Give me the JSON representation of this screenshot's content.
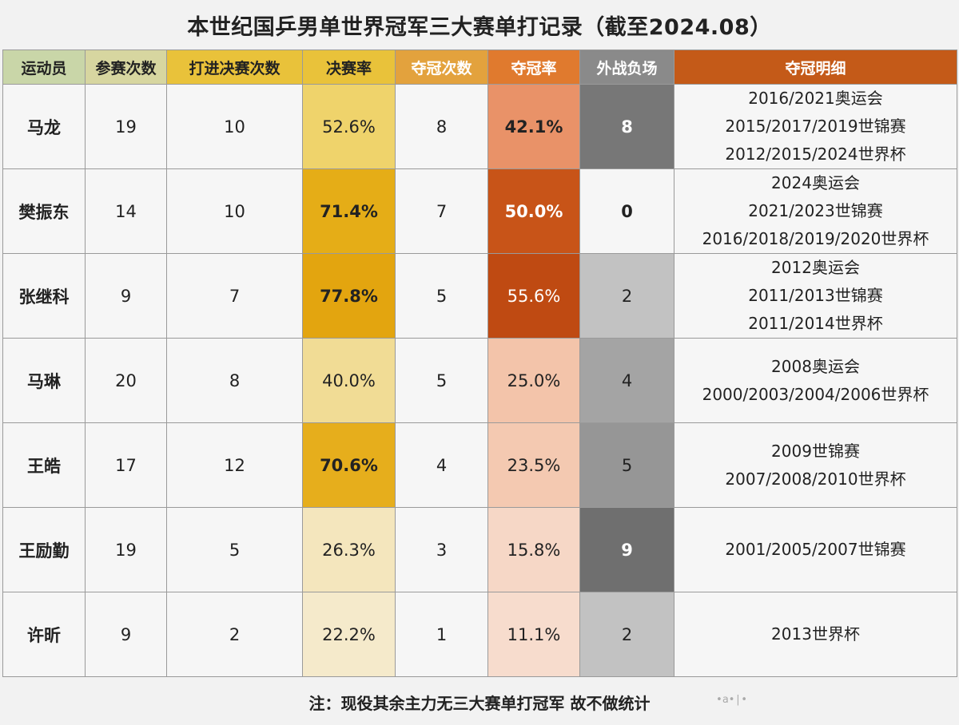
{
  "title": "本世纪国乒男单世界冠军三大赛单打记录（截至2024.08）",
  "note": "注：现役其余主力无三大赛单打冠军 故不做统计",
  "colors": {
    "header_name": "#c9d6a8",
    "header_entries": "#d7d6a0",
    "header_finals": "#e9c23a",
    "header_final_rate": "#e9c23a",
    "header_titles": "#e3a23d",
    "header_title_rate": "#e07a2e",
    "header_losses": "#8a8a8a",
    "header_detail": "#c45a18"
  },
  "chart_data": {
    "type": "table",
    "title": "本世纪国乒男单世界冠军三大赛单打记录（截至2024.08）",
    "columns": [
      "运动员",
      "参赛次数",
      "打进决赛次数",
      "决赛率",
      "夺冠次数",
      "夺冠率",
      "外战负场",
      "夺冠明细"
    ],
    "rows": [
      {
        "name": "马龙",
        "entries": "19",
        "finals": "10",
        "final_rate": "52.6%",
        "titles": "8",
        "title_rate": "42.1%",
        "losses": "8",
        "detail": [
          "2016/2021奥运会",
          "2015/2017/2019世锦赛",
          "2012/2015/2024世界杯"
        ],
        "final_rate_color": "#efd36b",
        "title_rate_color": "#e99268",
        "losses_color": "#777777",
        "final_rate_bold": false,
        "title_rate_bold": true,
        "losses_bold": true,
        "title_rate_text_color": "#222222",
        "losses_text_color": "#ffffff"
      },
      {
        "name": "樊振东",
        "entries": "14",
        "finals": "10",
        "final_rate": "71.4%",
        "titles": "7",
        "title_rate": "50.0%",
        "losses": "0",
        "detail": [
          "2024奥运会",
          "2021/2023世锦赛",
          "2016/2018/2019/2020世界杯"
        ],
        "final_rate_color": "#e5ad17",
        "title_rate_color": "#c85418",
        "losses_color": "#f6f6f6",
        "final_rate_bold": true,
        "title_rate_bold": true,
        "losses_bold": true,
        "title_rate_text_color": "#ffffff",
        "losses_text_color": "#222222"
      },
      {
        "name": "张继科",
        "entries": "9",
        "finals": "7",
        "final_rate": "77.8%",
        "titles": "5",
        "title_rate": "55.6%",
        "losses": "2",
        "detail": [
          "2012奥运会",
          "2011/2013世锦赛",
          "2011/2014世界杯"
        ],
        "final_rate_color": "#e3a50f",
        "title_rate_color": "#bf4a12",
        "losses_color": "#c2c2c2",
        "final_rate_bold": true,
        "title_rate_bold": false,
        "losses_bold": false,
        "title_rate_text_color": "#ffffff",
        "losses_text_color": "#222222"
      },
      {
        "name": "马琳",
        "entries": "20",
        "finals": "8",
        "final_rate": "40.0%",
        "titles": "5",
        "title_rate": "25.0%",
        "losses": "4",
        "detail": [
          "2008奥运会",
          "2000/2003/2004/2006世界杯"
        ],
        "final_rate_color": "#f1dc95",
        "title_rate_color": "#f3c4aa",
        "losses_color": "#a4a4a4",
        "final_rate_bold": false,
        "title_rate_bold": false,
        "losses_bold": false,
        "title_rate_text_color": "#222222",
        "losses_text_color": "#222222"
      },
      {
        "name": "王皓",
        "entries": "17",
        "finals": "12",
        "final_rate": "70.6%",
        "titles": "4",
        "title_rate": "23.5%",
        "losses": "5",
        "detail": [
          "2009世锦赛",
          "2007/2008/2010世界杯"
        ],
        "final_rate_color": "#e6ae1c",
        "title_rate_color": "#f4c9b1",
        "losses_color": "#969696",
        "final_rate_bold": true,
        "title_rate_bold": false,
        "losses_bold": false,
        "title_rate_text_color": "#222222",
        "losses_text_color": "#222222"
      },
      {
        "name": "王励勤",
        "entries": "19",
        "finals": "5",
        "final_rate": "26.3%",
        "titles": "3",
        "title_rate": "15.8%",
        "losses": "9",
        "detail": [
          "2001/2005/2007世锦赛"
        ],
        "final_rate_color": "#f4e6bd",
        "title_rate_color": "#f6d7c6",
        "losses_color": "#6f6f6f",
        "final_rate_bold": false,
        "title_rate_bold": false,
        "losses_bold": true,
        "title_rate_text_color": "#222222",
        "losses_text_color": "#ffffff"
      },
      {
        "name": "许昕",
        "entries": "9",
        "finals": "2",
        "final_rate": "22.2%",
        "titles": "1",
        "title_rate": "11.1%",
        "losses": "2",
        "detail": [
          "2013世界杯"
        ],
        "final_rate_color": "#f5eacb",
        "title_rate_color": "#f7dccd",
        "losses_color": "#c2c2c2",
        "final_rate_bold": false,
        "title_rate_bold": false,
        "losses_bold": false,
        "title_rate_text_color": "#222222",
        "losses_text_color": "#222222"
      }
    ]
  }
}
